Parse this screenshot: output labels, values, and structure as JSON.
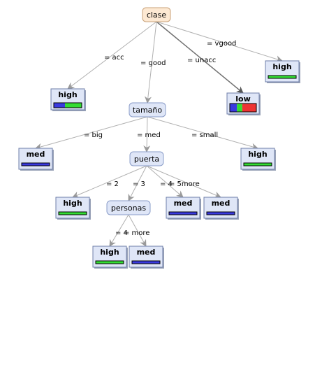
{
  "colors": {
    "acc": "#3a3ae0",
    "good": "#33dd33",
    "unacc": "#ee3333",
    "vgood": "#33dd33"
  },
  "nodes": [
    {
      "id": "clase",
      "label": "clase",
      "kind": "root"
    },
    {
      "id": "tamano",
      "label": "tamaño",
      "kind": "inner"
    },
    {
      "id": "puerta",
      "label": "puerta",
      "kind": "inner"
    },
    {
      "id": "personas",
      "label": "personas",
      "kind": "inner"
    },
    {
      "id": "leaf_acc",
      "label": "high",
      "kind": "leaf",
      "dist": [
        [
          "acc",
          0.4
        ],
        [
          "good",
          0.6
        ]
      ]
    },
    {
      "id": "leaf_unacc",
      "label": "low",
      "kind": "leaf",
      "dist": [
        [
          "acc",
          0.27
        ],
        [
          "good",
          0.2
        ],
        [
          "unacc",
          0.53
        ]
      ]
    },
    {
      "id": "leaf_vgood",
      "label": "high",
      "kind": "leaf",
      "dist": [
        [
          "good",
          1.0
        ]
      ]
    },
    {
      "id": "leaf_big",
      "label": "med",
      "kind": "leaf",
      "dist": [
        [
          "acc",
          1.0
        ]
      ]
    },
    {
      "id": "leaf_small",
      "label": "high",
      "kind": "leaf",
      "dist": [
        [
          "good",
          1.0
        ]
      ]
    },
    {
      "id": "leaf_p2",
      "label": "high",
      "kind": "leaf",
      "dist": [
        [
          "good",
          1.0
        ]
      ]
    },
    {
      "id": "leaf_p5",
      "label": "med",
      "kind": "leaf",
      "dist": [
        [
          "acc",
          1.0
        ]
      ]
    },
    {
      "id": "leaf_p5b",
      "label": "med",
      "kind": "leaf",
      "dist": [
        [
          "acc",
          1.0
        ]
      ]
    },
    {
      "id": "leaf_4",
      "label": "high",
      "kind": "leaf",
      "dist": [
        [
          "good",
          1.0
        ]
      ]
    },
    {
      "id": "leaf_more",
      "label": "med",
      "kind": "leaf",
      "dist": [
        [
          "acc",
          1.0
        ]
      ]
    }
  ],
  "edges": [
    {
      "from": "clase",
      "to": "leaf_acc",
      "label": "= acc"
    },
    {
      "from": "clase",
      "to": "tamano",
      "label": "= good"
    },
    {
      "from": "clase",
      "to": "leaf_unacc",
      "label": "= unacc"
    },
    {
      "from": "clase",
      "to": "leaf_vgood",
      "label": "= vgood"
    },
    {
      "from": "tamano",
      "to": "leaf_big",
      "label": "= big"
    },
    {
      "from": "tamano",
      "to": "puerta",
      "label": "= med"
    },
    {
      "from": "tamano",
      "to": "leaf_small",
      "label": "= small"
    },
    {
      "from": "puerta",
      "to": "leaf_p2",
      "label": "= 2"
    },
    {
      "from": "puerta",
      "to": "personas",
      "label": "= 3"
    },
    {
      "from": "puerta",
      "to": "leaf_p5",
      "label": "= 4"
    },
    {
      "from": "puerta",
      "to": "leaf_p5b",
      "label": "= 5more"
    },
    {
      "from": "personas",
      "to": "leaf_4",
      "label": "= 4"
    },
    {
      "from": "personas",
      "to": "leaf_more",
      "label": "= more"
    }
  ]
}
